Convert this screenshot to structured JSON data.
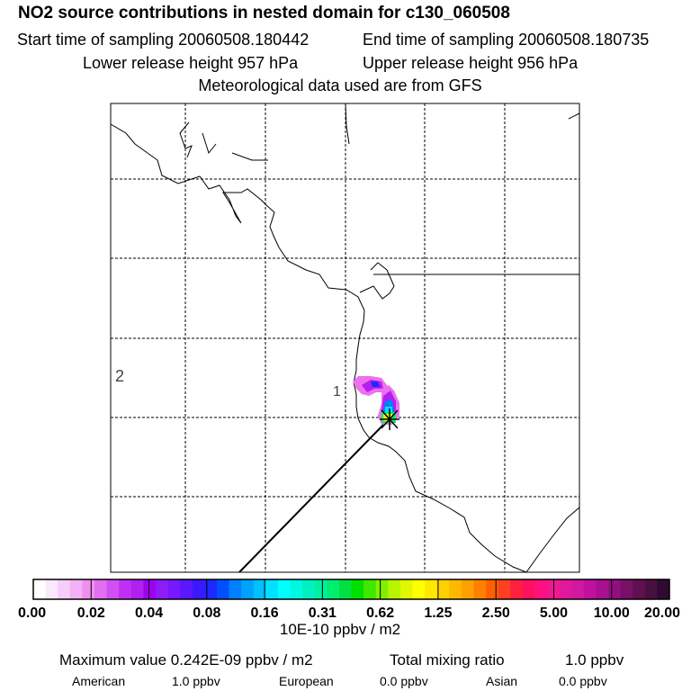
{
  "header": {
    "title": "NO2 source contributions in nested domain for c130_060508",
    "start_time": "Start time of sampling 20060508.180442",
    "end_time": "End time of sampling 20060508.180735",
    "lower_release": "Lower release height  957 hPa",
    "upper_release": "Upper release height  956 hPa",
    "met_data": "Meteorological data used are from GFS"
  },
  "map": {
    "labels": [
      "1",
      "2"
    ],
    "marker": "release-point-x"
  },
  "colorbar": {
    "tick_labels": [
      "0.00",
      "0.02",
      "0.04",
      "0.08",
      "0.16",
      "0.31",
      "0.62",
      "1.25",
      "2.50",
      "5.00",
      "10.00",
      "20.00"
    ],
    "colors": [
      "#ffffff",
      "#fce8fc",
      "#f8ccf8",
      "#f4b0f4",
      "#ee90ee",
      "#e070f0",
      "#d050f4",
      "#c030f4",
      "#b020f0",
      "#a000f0",
      "#8c1cf8",
      "#7818ff",
      "#5a18ff",
      "#3c18ff",
      "#1e28ff",
      "#0050ff",
      "#0080ff",
      "#00a0ff",
      "#00c0ff",
      "#00e0ff",
      "#00ffff",
      "#00f8e0",
      "#00f0c0",
      "#00f0a0",
      "#00ee70",
      "#00e040",
      "#00e000",
      "#40e800",
      "#80f000",
      "#b8f400",
      "#e0f800",
      "#ffff00",
      "#ffe800",
      "#ffd000",
      "#ffb800",
      "#ffa000",
      "#ff8000",
      "#ff6000",
      "#ff4020",
      "#ff2040",
      "#ff1060",
      "#ff1080",
      "#f01890",
      "#e0189c",
      "#d018a0",
      "#c010a0",
      "#a81090",
      "#901080",
      "#781068",
      "#601050",
      "#481040",
      "#300a30"
    ],
    "unit": "10E-10 ppbv / m2"
  },
  "footer": {
    "max_value": "Maximum value  0.242E-09 ppbv / m2",
    "total_mixing_label": "Total mixing ratio",
    "total_mixing_value": "1.0 ppbv",
    "american_label": "American",
    "american_value": "1.0 ppbv",
    "european_label": "European",
    "european_value": "0.0 ppbv",
    "asian_label": "Asian",
    "asian_value": "0.0 ppbv"
  }
}
